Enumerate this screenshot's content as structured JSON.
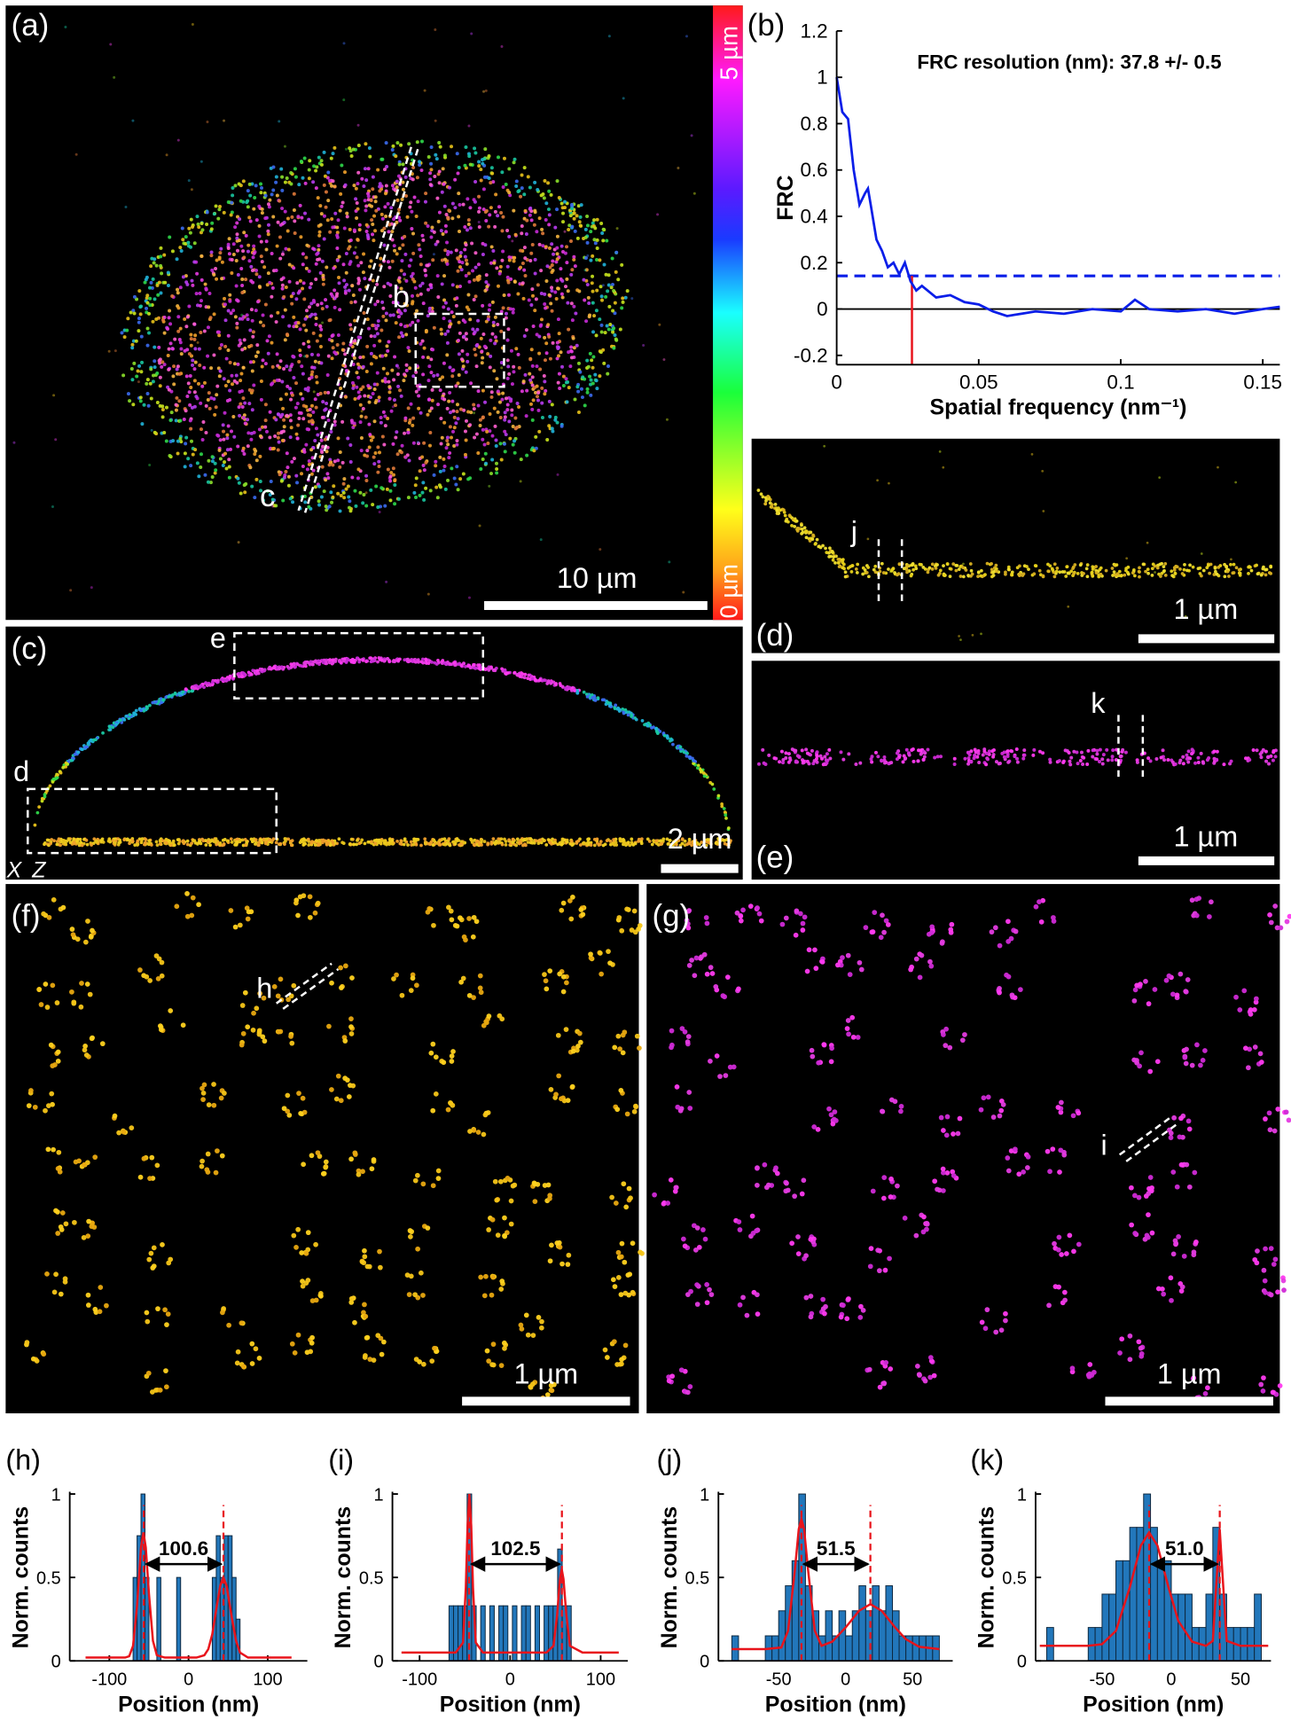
{
  "chart_data": [
    {
      "type": "line",
      "panel_label": "(b)",
      "annotation": "FRC resolution (nm): 37.8 +/- 0.5",
      "x_label": "Spatial frequency (nm⁻¹)",
      "y_label": "FRC",
      "color": "#0a1ee8",
      "x": [
        0,
        0.002,
        0.004,
        0.006,
        0.008,
        0.01,
        0.011,
        0.012,
        0.014,
        0.016,
        0.018,
        0.02,
        0.022,
        0.024,
        0.026,
        0.028,
        0.03,
        0.035,
        0.04,
        0.045,
        0.05,
        0.055,
        0.06,
        0.065,
        0.07,
        0.08,
        0.09,
        0.1,
        0.105,
        0.11,
        0.12,
        0.13,
        0.14,
        0.15,
        0.156
      ],
      "values": [
        1.0,
        0.85,
        0.82,
        0.6,
        0.45,
        0.5,
        0.52,
        0.45,
        0.3,
        0.25,
        0.18,
        0.2,
        0.15,
        0.2,
        0.12,
        0.08,
        0.1,
        0.05,
        0.06,
        0.03,
        0.02,
        -0.01,
        -0.03,
        -0.02,
        -0.01,
        -0.02,
        0.0,
        -0.01,
        0.04,
        0.0,
        -0.01,
        0.0,
        -0.02,
        0.0,
        0.01
      ],
      "threshold": 0.143,
      "resolution_x": 0.0265,
      "xlim": [
        0,
        0.156
      ],
      "xticks": [
        0,
        0.05,
        0.1,
        0.15
      ],
      "ylim": [
        -0.24,
        1.2
      ],
      "yticks": [
        -0.2,
        0,
        0.2,
        0.4,
        0.6,
        0.8,
        1,
        1.2
      ]
    },
    {
      "type": "histogram",
      "panel_label": "(h)",
      "annotation": "100.6",
      "x_label": "Position (nm)",
      "y_label": "Norm. counts",
      "color": "#2277bb",
      "bins": [
        -70,
        -65,
        -60,
        -55,
        -50,
        -45,
        -40,
        -35,
        -30,
        -25,
        -20,
        -15,
        -10,
        -5,
        0,
        5,
        10,
        15,
        20,
        25,
        30,
        35,
        40,
        45,
        50,
        55,
        60,
        65
      ],
      "values": [
        0.5,
        0.75,
        1,
        0.5,
        0,
        0,
        0.5,
        0,
        0,
        0,
        0,
        0.5,
        0,
        0,
        0,
        0,
        0,
        0,
        0,
        0,
        0.5,
        0.75,
        0.5,
        0.75,
        0.75,
        0.5,
        0.25
      ],
      "fit": {
        "color": "#e8141b",
        "x": [
          -130,
          -90,
          -80,
          -75,
          -70,
          -65,
          -60,
          -57,
          -54,
          -50,
          -45,
          -40,
          -30,
          -10,
          10,
          20,
          25,
          30,
          35,
          40,
          44,
          48,
          55,
          60,
          65,
          75,
          90,
          130
        ],
        "y": [
          0.02,
          0.02,
          0.02,
          0.028,
          0.09,
          0.33,
          0.68,
          0.77,
          0.68,
          0.4,
          0.12,
          0.034,
          0.02,
          0.02,
          0.02,
          0.034,
          0.07,
          0.16,
          0.31,
          0.45,
          0.5,
          0.45,
          0.25,
          0.12,
          0.05,
          0.02,
          0.02,
          0.02
        ]
      },
      "peaks": [
        -56.5,
        44.1
      ],
      "xlim": [
        -150,
        150
      ],
      "xticks": [
        -100,
        0,
        100
      ],
      "ylim": [
        0,
        1
      ],
      "yticks": [
        0,
        0.5,
        1
      ]
    },
    {
      "type": "histogram",
      "panel_label": "(i)",
      "annotation": "102.5",
      "x_label": "Position (nm)",
      "y_label": "Norm. counts",
      "color": "#2277bb",
      "bins": [
        -67.5,
        -62.5,
        -57.5,
        -52.5,
        -47.5,
        -42.5,
        -37.5,
        -32.5,
        -27.5,
        -22.5,
        -17.5,
        -12.5,
        -7.5,
        -2.5,
        2.5,
        7.5,
        12.5,
        17.5,
        22.5,
        27.5,
        32.5,
        37.5,
        42.5,
        47.5,
        52.5,
        57.5,
        62.5,
        67.5
      ],
      "values": [
        0.33,
        0.33,
        0.33,
        0.33,
        1,
        0.33,
        0,
        0.33,
        0,
        0.33,
        0,
        0.33,
        0.33,
        0,
        0.33,
        0,
        0.33,
        0.33,
        0,
        0.33,
        0,
        0.33,
        0.33,
        0.33,
        0.67,
        0.33,
        0.33
      ],
      "fit": {
        "color": "#e8141b",
        "x": [
          -120,
          -60,
          -52,
          -49,
          -47,
          -45,
          -43,
          -41,
          -38,
          -30,
          0,
          40,
          48,
          52,
          55,
          57,
          59,
          62,
          66,
          80,
          120
        ],
        "y": [
          0.05,
          0.05,
          0.11,
          0.44,
          0.81,
          1.0,
          0.81,
          0.44,
          0.11,
          0.05,
          0.05,
          0.05,
          0.09,
          0.28,
          0.49,
          0.55,
          0.49,
          0.28,
          0.09,
          0.05,
          0.05
        ]
      },
      "peaks": [
        -45.3,
        57.2
      ],
      "xlim": [
        -130,
        130
      ],
      "xticks": [
        -100,
        0,
        100
      ],
      "ylim": [
        0,
        1
      ],
      "yticks": [
        0,
        0.5,
        1
      ]
    },
    {
      "type": "histogram",
      "panel_label": "(j)",
      "annotation": "51.5",
      "x_label": "Position (nm)",
      "y_label": "Norm. counts",
      "color": "#2277bb",
      "bins": [
        -85,
        -80,
        -75,
        -70,
        -65,
        -60,
        -55,
        -50,
        -45,
        -40,
        -35,
        -30,
        -25,
        -20,
        -15,
        -10,
        -5,
        0,
        5,
        10,
        15,
        20,
        25,
        30,
        35,
        40,
        45,
        50,
        55,
        60,
        65,
        70
      ],
      "values": [
        0.15,
        0,
        0,
        0,
        0,
        0.15,
        0.15,
        0.3,
        0.45,
        0.6,
        1,
        0.45,
        0.3,
        0.15,
        0.3,
        0.15,
        0.3,
        0.15,
        0.3,
        0.45,
        0.3,
        0.45,
        0.3,
        0.45,
        0.3,
        0.15,
        0.15,
        0.15,
        0.15,
        0.15,
        0.15
      ],
      "fit": {
        "color": "#e8141b",
        "x": [
          -85,
          -60,
          -48,
          -43,
          -38,
          -35,
          -33,
          -31,
          -28,
          -23,
          -18,
          -10,
          0,
          10,
          18.5,
          27,
          37,
          45,
          55,
          70
        ],
        "y": [
          0.07,
          0.07,
          0.08,
          0.18,
          0.54,
          0.79,
          0.85,
          0.79,
          0.54,
          0.18,
          0.09,
          0.115,
          0.2,
          0.3,
          0.34,
          0.3,
          0.2,
          0.13,
          0.084,
          0.07
        ]
      },
      "peaks": [
        -33,
        18.5
      ],
      "xlim": [
        -95,
        80
      ],
      "xticks": [
        -50,
        0,
        50
      ],
      "ylim": [
        0,
        1
      ],
      "yticks": [
        0,
        0.5,
        1
      ]
    },
    {
      "type": "histogram",
      "panel_label": "(k)",
      "annotation": "51.0",
      "x_label": "Position (nm)",
      "y_label": "Norm. counts",
      "color": "#2277bb",
      "bins": [
        -90,
        -85,
        -80,
        -75,
        -70,
        -65,
        -60,
        -55,
        -50,
        -45,
        -40,
        -35,
        -30,
        -25,
        -20,
        -15,
        -10,
        -5,
        0,
        5,
        10,
        15,
        20,
        25,
        30,
        35,
        40,
        45,
        50,
        55,
        60,
        65
      ],
      "values": [
        0.2,
        0,
        0,
        0,
        0,
        0,
        0.2,
        0.2,
        0.4,
        0.4,
        0.6,
        0.6,
        0.8,
        0.8,
        1,
        0.8,
        0.6,
        0.6,
        0.4,
        0.4,
        0.4,
        0.2,
        0.2,
        0.4,
        0.8,
        0.4,
        0.2,
        0.2,
        0.2,
        0.2,
        0.4
      ],
      "fit": {
        "color": "#e8141b",
        "x": [
          -95,
          -60,
          -50,
          -40,
          -30,
          -22,
          -16,
          -10,
          -2,
          5,
          15,
          25,
          30,
          33,
          35,
          37,
          40,
          50,
          70
        ],
        "y": [
          0.09,
          0.09,
          0.1,
          0.18,
          0.44,
          0.69,
          0.77,
          0.69,
          0.44,
          0.24,
          0.115,
          0.09,
          0.12,
          0.52,
          0.79,
          0.52,
          0.12,
          0.09,
          0.09
        ]
      },
      "peaks": [
        -16,
        35
      ],
      "xlim": [
        -98,
        72
      ],
      "xticks": [
        -50,
        0,
        50
      ],
      "ylim": [
        0,
        1
      ],
      "yticks": [
        0,
        0.5,
        1
      ]
    }
  ],
  "images": [
    {
      "label": "(a)",
      "scale_bar": "10 µm",
      "colorbar": [
        "5 µm",
        "0 µm"
      ],
      "annotations": [
        "b",
        "c"
      ]
    },
    {
      "label": "(c)",
      "scale_bar": "2 µm",
      "annotations": [
        "e",
        "d"
      ],
      "axes": [
        "X",
        "Z"
      ]
    },
    {
      "label": "(d)",
      "scale_bar": "1 µm",
      "annotations": [
        "j"
      ]
    },
    {
      "label": "(e)",
      "scale_bar": "1 µm",
      "annotations": [
        "k"
      ]
    },
    {
      "label": "(f)",
      "scale_bar": "1 µm",
      "annotations": [
        "h"
      ]
    },
    {
      "label": "(g)",
      "scale_bar": "1 µm",
      "annotations": [
        "i"
      ]
    }
  ]
}
